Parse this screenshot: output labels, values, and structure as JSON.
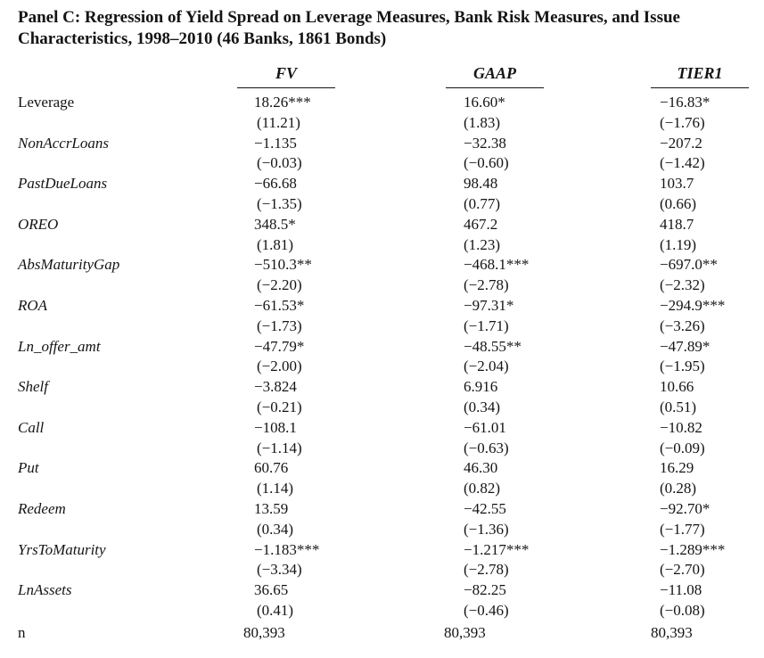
{
  "title": "Panel C: Regression of Yield Spread on Leverage Measures, Bank Risk Measures, and Issue Characteristics, 1998–2010 (46 Banks, 1861 Bonds)",
  "columns": [
    "FV",
    "GAAP",
    "TIER1"
  ],
  "rows": [
    {
      "label": "Leverage",
      "italic": false,
      "coef": [
        "18.26***",
        "16.60*",
        "−16.83*"
      ],
      "tstat": [
        "(11.21)",
        "(1.83)",
        "(−1.76)"
      ]
    },
    {
      "label": "NonAccrLoans",
      "italic": true,
      "coef": [
        "−1.135",
        "−32.38",
        "−207.2"
      ],
      "tstat": [
        "(−0.03)",
        "(−0.60)",
        "(−1.42)"
      ]
    },
    {
      "label": "PastDueLoans",
      "italic": true,
      "coef": [
        "−66.68",
        "98.48",
        "103.7"
      ],
      "tstat": [
        "(−1.35)",
        "(0.77)",
        "(0.66)"
      ]
    },
    {
      "label": "OREO",
      "italic": true,
      "coef": [
        "348.5*",
        "467.2",
        "418.7"
      ],
      "tstat": [
        "(1.81)",
        "(1.23)",
        "(1.19)"
      ]
    },
    {
      "label": "AbsMaturityGap",
      "italic": true,
      "coef": [
        "−510.3**",
        "−468.1***",
        "−697.0**"
      ],
      "tstat": [
        "(−2.20)",
        "(−2.78)",
        "(−2.32)"
      ]
    },
    {
      "label": "ROA",
      "italic": true,
      "coef": [
        "−61.53*",
        "−97.31*",
        "−294.9***"
      ],
      "tstat": [
        "(−1.73)",
        "(−1.71)",
        "(−3.26)"
      ]
    },
    {
      "label": "Ln_offer_amt",
      "italic": true,
      "coef": [
        "−47.79*",
        "−48.55**",
        "−47.89*"
      ],
      "tstat": [
        "(−2.00)",
        "(−2.04)",
        "(−1.95)"
      ]
    },
    {
      "label": "Shelf",
      "italic": true,
      "coef": [
        "−3.824",
        "6.916",
        "10.66"
      ],
      "tstat": [
        "(−0.21)",
        "(0.34)",
        "(0.51)"
      ]
    },
    {
      "label": "Call",
      "italic": true,
      "coef": [
        "−108.1",
        "−61.01",
        "−10.82"
      ],
      "tstat": [
        "(−1.14)",
        "(−0.63)",
        "(−0.09)"
      ]
    },
    {
      "label": "Put",
      "italic": true,
      "coef": [
        "60.76",
        "46.30",
        "16.29"
      ],
      "tstat": [
        "(1.14)",
        "(0.82)",
        "(0.28)"
      ]
    },
    {
      "label": "Redeem",
      "italic": true,
      "coef": [
        "13.59",
        "−42.55",
        "−92.70*"
      ],
      "tstat": [
        "(0.34)",
        "(−1.36)",
        "(−1.77)"
      ]
    },
    {
      "label": "YrsToMaturity",
      "italic": true,
      "coef": [
        "−1.183***",
        "−1.217***",
        "−1.289***"
      ],
      "tstat": [
        "(−3.34)",
        "(−2.78)",
        "(−2.70)"
      ]
    },
    {
      "label": "LnAssets",
      "italic": true,
      "coef": [
        "36.65",
        "−82.25",
        "−11.08"
      ],
      "tstat": [
        "(0.41)",
        "(−0.46)",
        "(−0.08)"
      ]
    }
  ],
  "n_row": {
    "label": "n",
    "values": [
      "80,393",
      "80,393",
      "80,393"
    ]
  }
}
